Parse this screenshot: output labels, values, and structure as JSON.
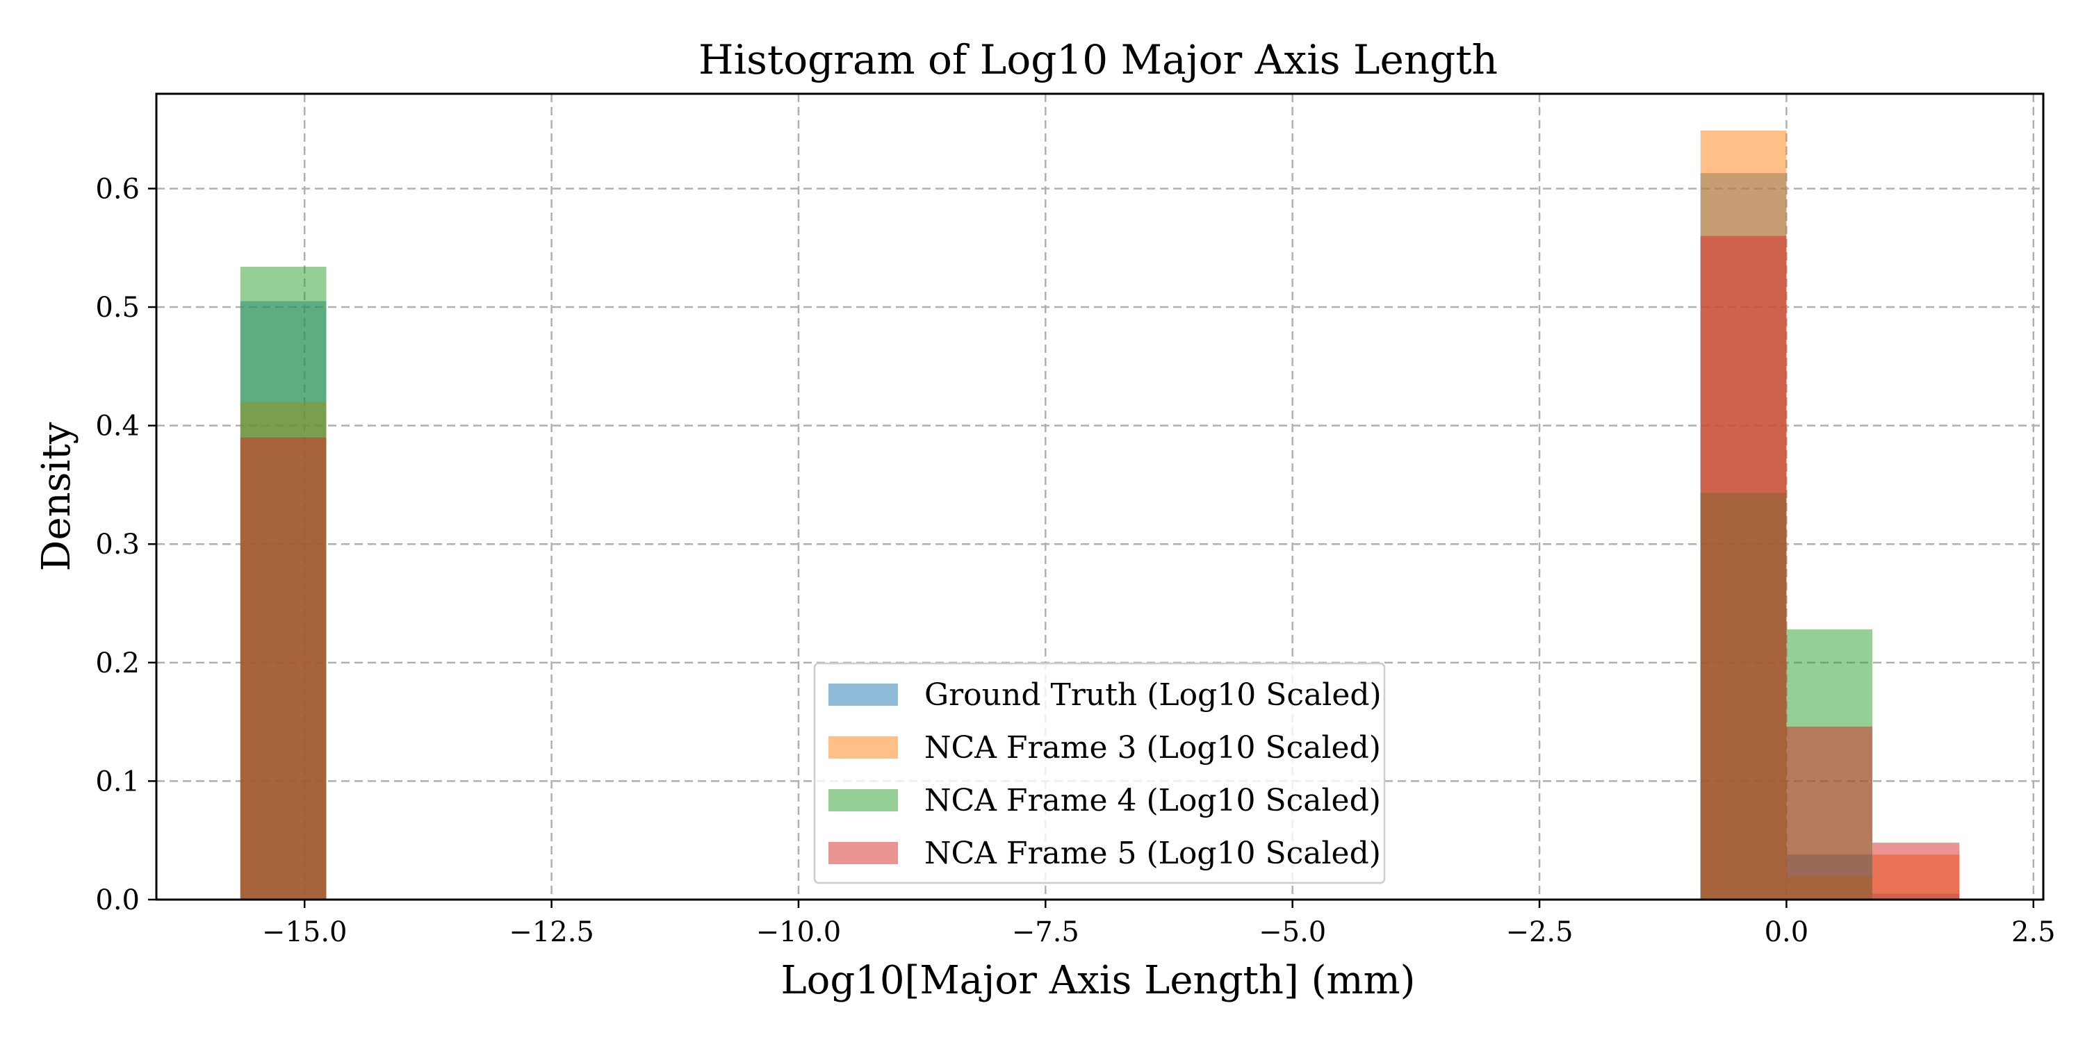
{
  "chart_data": {
    "type": "bar",
    "title": "Histogram of Log10 Major Axis Length",
    "xlabel": "Log10[Major Axis Length] (mm)",
    "ylabel": "Density",
    "xlim": [
      -16.5,
      2.6
    ],
    "ylim": [
      0,
      0.68
    ],
    "xticks": [
      -15.0,
      -12.5,
      -10.0,
      -7.5,
      -5.0,
      -2.5,
      0.0,
      2.5
    ],
    "xtick_labels": [
      "−15.0",
      "−12.5",
      "−10.0",
      "−7.5",
      "−5.0",
      "−2.5",
      "0.0",
      "2.5"
    ],
    "yticks": [
      0.0,
      0.1,
      0.2,
      0.3,
      0.4,
      0.5,
      0.6
    ],
    "ytick_labels": [
      "0.0",
      "0.1",
      "0.2",
      "0.3",
      "0.4",
      "0.5",
      "0.6"
    ],
    "grid": true,
    "legend_position": "bottom-center",
    "series": [
      {
        "name": "Ground Truth (Log10 Scaled)",
        "color": "#1f77b4",
        "alpha": 0.5,
        "bins": [
          {
            "x0": -15.65,
            "x1": -14.78,
            "value": 0.505
          },
          {
            "x0": -0.87,
            "x1": 0.0,
            "value": 0.613
          },
          {
            "x0": 0.0,
            "x1": 0.87,
            "value": 0.038
          },
          {
            "x0": 0.87,
            "x1": 1.75,
            "value": 0.005
          }
        ]
      },
      {
        "name": "NCA Frame 3 (Log10 Scaled)",
        "color": "#ff7f0e",
        "alpha": 0.5,
        "bins": [
          {
            "x0": -15.65,
            "x1": -14.78,
            "value": 0.42
          },
          {
            "x0": -0.87,
            "x1": 0.0,
            "value": 0.649
          },
          {
            "x0": 0.0,
            "x1": 0.87,
            "value": 0.02
          },
          {
            "x0": 0.87,
            "x1": 1.75,
            "value": 0.038
          }
        ]
      },
      {
        "name": "NCA Frame 4 (Log10 Scaled)",
        "color": "#2ca02c",
        "alpha": 0.5,
        "bins": [
          {
            "x0": -15.65,
            "x1": -14.78,
            "value": 0.534
          },
          {
            "x0": -0.87,
            "x1": 0.0,
            "value": 0.343
          },
          {
            "x0": 0.0,
            "x1": 0.87,
            "value": 0.228
          },
          {
            "x0": 0.87,
            "x1": 1.75,
            "value": 0.0
          }
        ]
      },
      {
        "name": "NCA Frame 5 (Log10 Scaled)",
        "color": "#d62728",
        "alpha": 0.5,
        "bins": [
          {
            "x0": -15.65,
            "x1": -14.78,
            "value": 0.39
          },
          {
            "x0": -0.87,
            "x1": 0.0,
            "value": 0.56
          },
          {
            "x0": 0.0,
            "x1": 0.87,
            "value": 0.146
          },
          {
            "x0": 0.87,
            "x1": 1.75,
            "value": 0.048
          }
        ]
      }
    ]
  }
}
